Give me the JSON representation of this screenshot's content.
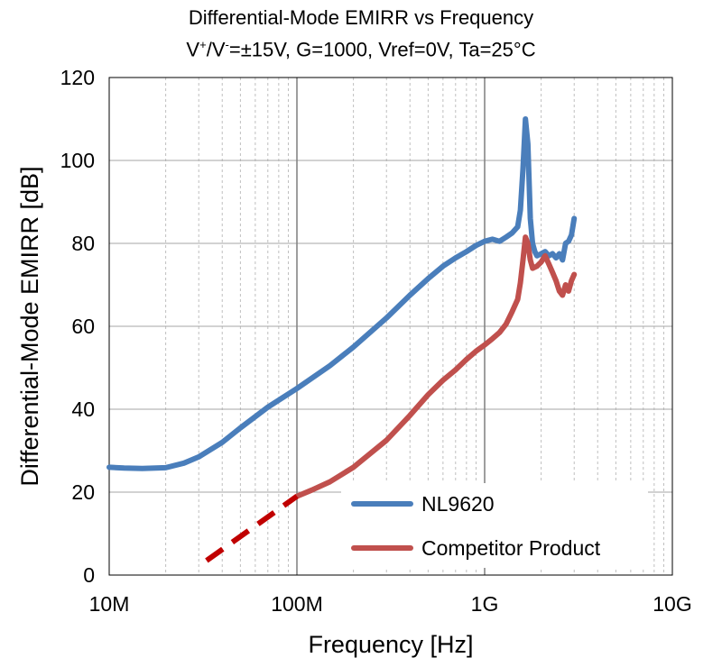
{
  "chart_data": {
    "type": "line",
    "title": "Differential-Mode EMIRR vs Frequency",
    "subtitle_parts": [
      "V",
      "+",
      "/V",
      "-",
      "=±15V, G=1000, Vref=0V, Ta=25°C"
    ],
    "xlabel": "Frequency [Hz]",
    "ylabel": "Differential-Mode EMIRR [dB]",
    "x_scale": "log",
    "xlim": [
      10000000,
      10000000000
    ],
    "ylim": [
      0,
      120
    ],
    "x_ticks": [
      {
        "value": 10000000,
        "label": "10M"
      },
      {
        "value": 100000000,
        "label": "100M"
      },
      {
        "value": 1000000000,
        "label": "1G"
      },
      {
        "value": 10000000000,
        "label": "10G"
      }
    ],
    "y_ticks": [
      {
        "value": 0,
        "label": "0"
      },
      {
        "value": 20,
        "label": "20"
      },
      {
        "value": 40,
        "label": "40"
      },
      {
        "value": 60,
        "label": "60"
      },
      {
        "value": 80,
        "label": "80"
      },
      {
        "value": 100,
        "label": "100"
      },
      {
        "value": 120,
        "label": "120"
      }
    ],
    "grid": true,
    "legend_position": "bottom-right",
    "series": [
      {
        "name": "NL9620",
        "color": "#4a7ebb",
        "x": [
          10000000,
          12000000,
          15000000,
          20000000,
          25000000,
          30000000,
          40000000,
          50000000,
          70000000,
          100000000,
          150000000,
          200000000,
          300000000,
          400000000,
          500000000,
          600000000,
          700000000,
          800000000,
          900000000,
          1000000000,
          1100000000,
          1200000000,
          1300000000,
          1400000000,
          1500000000,
          1550000000,
          1600000000,
          1650000000,
          1700000000,
          1750000000,
          1800000000,
          1850000000,
          1900000000,
          2000000000,
          2100000000,
          2200000000,
          2300000000,
          2400000000,
          2500000000,
          2600000000,
          2700000000,
          2800000000,
          2900000000,
          3000000000
        ],
        "y": [
          26,
          25.8,
          25.7,
          25.9,
          27,
          28.5,
          32,
          35.5,
          40.5,
          45,
          50.5,
          55,
          62,
          67.5,
          71.5,
          74.5,
          76.5,
          78,
          79.5,
          80.5,
          81,
          80.5,
          81.5,
          82.5,
          84,
          88,
          98,
          110,
          104,
          86,
          80,
          78,
          77,
          77.5,
          78,
          77,
          77.5,
          76.5,
          77.5,
          76,
          80,
          80.5,
          82,
          86
        ]
      },
      {
        "name": "Competitor Product",
        "color": "#c0504d",
        "x": [
          100000000,
          120000000,
          150000000,
          200000000,
          300000000,
          400000000,
          500000000,
          600000000,
          700000000,
          800000000,
          900000000,
          1000000000,
          1100000000,
          1200000000,
          1300000000,
          1400000000,
          1500000000,
          1550000000,
          1600000000,
          1650000000,
          1700000000,
          1750000000,
          1800000000,
          1900000000,
          2000000000,
          2100000000,
          2200000000,
          2300000000,
          2400000000,
          2500000000,
          2600000000,
          2700000000,
          2800000000,
          2900000000,
          3000000000
        ],
        "y": [
          19,
          20.5,
          22.5,
          26,
          32.5,
          38.5,
          43.5,
          47,
          49.5,
          52,
          54,
          55.5,
          57,
          58.5,
          60.5,
          63.5,
          66.5,
          70.5,
          76,
          81.5,
          80,
          76,
          74,
          74.5,
          75.5,
          77,
          75,
          73,
          71,
          68.5,
          67.5,
          70,
          68.5,
          71,
          72.5
        ]
      },
      {
        "name": "",
        "color": "#c00000",
        "dashed": true,
        "x": [
          33000000,
          100000000
        ],
        "y": [
          3.5,
          19
        ]
      }
    ]
  }
}
